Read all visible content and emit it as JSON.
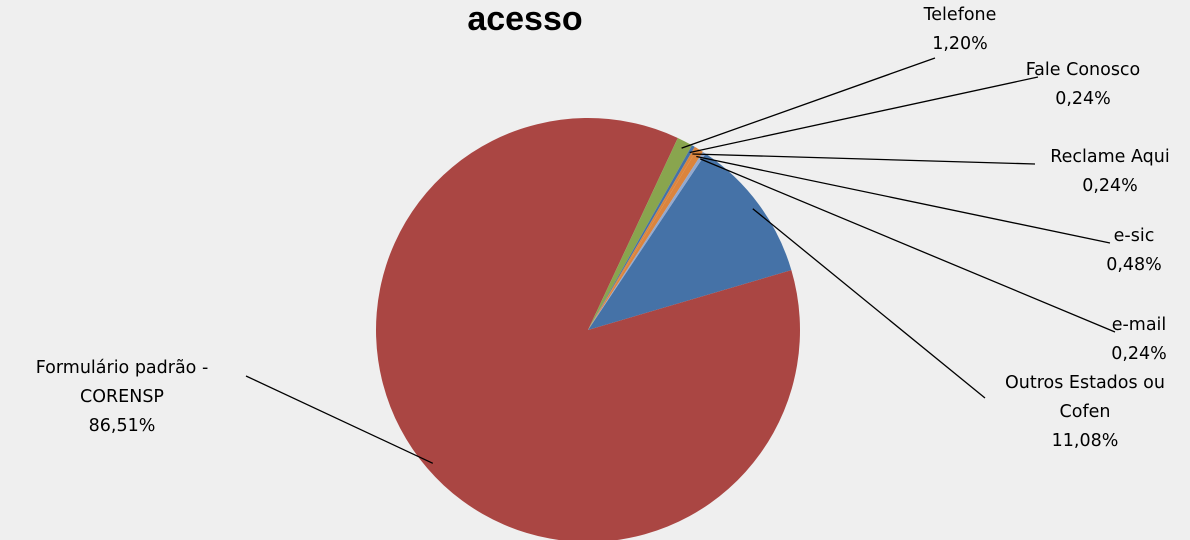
{
  "chart_data": {
    "type": "pie",
    "title": "acesso",
    "start_angle_deg": 56.3,
    "slices": [
      {
        "label_lines": [
          "Outros Estados ou",
          "Cofen"
        ],
        "value_text": "11,08%",
        "value": 11.08,
        "color": "#4572a7"
      },
      {
        "label_lines": [
          "Formulário padrão -",
          "CORENSP"
        ],
        "value_text": "86,51%",
        "value": 86.51,
        "color": "#aa4643"
      },
      {
        "label_lines": [
          "Telefone"
        ],
        "value_text": "1,20%",
        "value": 1.2,
        "color": "#89a54e"
      },
      {
        "label_lines": [
          "Fale Conosco"
        ],
        "value_text": "0,24%",
        "value": 0.24,
        "color": "#4572a7"
      },
      {
        "label_lines": [
          "Reclame Aqui"
        ],
        "value_text": "0,24%",
        "value": 0.24,
        "color": "#db843d"
      },
      {
        "label_lines": [
          "e-sic"
        ],
        "value_text": "0,48%",
        "value": 0.48,
        "color": "#db843d"
      },
      {
        "label_lines": [
          "e-mail"
        ],
        "value_text": "0,24%",
        "value": 0.24,
        "color": "#93a9cf"
      }
    ]
  }
}
